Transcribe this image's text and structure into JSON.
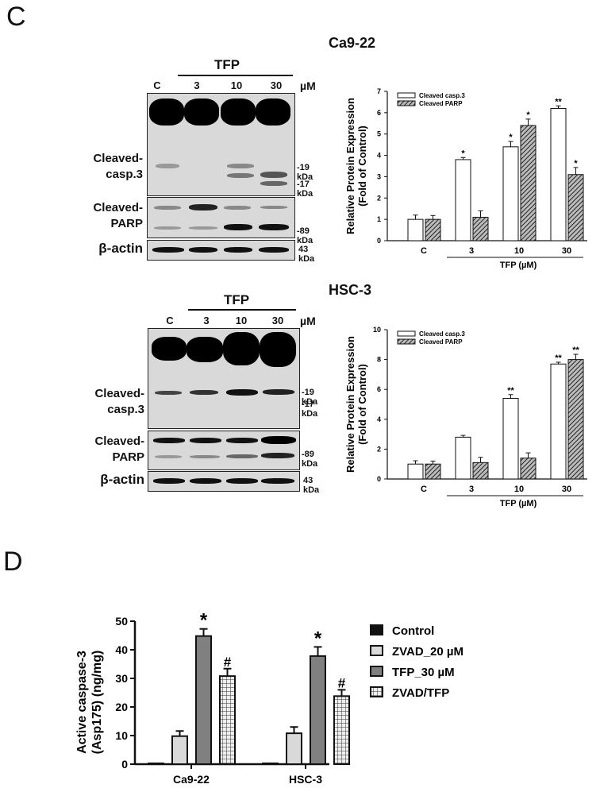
{
  "panel_c": {
    "letter": "C",
    "ca922": {
      "title": "Ca9-22",
      "blot": {
        "treatment": "TFP",
        "lanes": [
          "C",
          "3",
          "10",
          "30"
        ],
        "unit": "µM",
        "rows": [
          {
            "label_line1": "Cleaved-",
            "label_line2": "casp.3",
            "markers": [
              "-19 kDa",
              "-17 kDa"
            ]
          },
          {
            "label_line1": "Cleaved-",
            "label_line2": "PARP",
            "markers": [
              "-89 kDa"
            ]
          },
          {
            "label_line1": "β-actin",
            "label_line2": "",
            "markers": [
              "43 kDa"
            ]
          }
        ]
      }
    },
    "hsc3": {
      "title": "HSC-3",
      "blot": {
        "treatment": "TFP",
        "lanes": [
          "C",
          "3",
          "10",
          "30"
        ],
        "unit": "µM",
        "rows": [
          {
            "label_line1": "Cleaved-",
            "label_line2": "casp.3",
            "markers": [
              "-19 kDa",
              "-17 kDa"
            ]
          },
          {
            "label_line1": "Cleaved-",
            "label_line2": "PARP",
            "markers": [
              "-89 kDa"
            ]
          },
          {
            "label_line1": "β-actin",
            "label_line2": "",
            "markers": [
              "43 kDa"
            ]
          }
        ]
      }
    }
  },
  "panel_d": {
    "letter": "D"
  },
  "chart_data": [
    {
      "type": "bar",
      "title": "Ca9-22",
      "categories": [
        "C",
        "3",
        "10",
        "30"
      ],
      "xlabel": "TFP (µM)",
      "ylabel": "Relative Protein Expression (Fold of Control)",
      "ylim": [
        0,
        7
      ],
      "yticks": [
        0,
        1,
        2,
        3,
        4,
        5,
        6,
        7
      ],
      "legend_position": "top-left",
      "series": [
        {
          "name": "Cleaved casp.3",
          "pattern": "white",
          "values": [
            1.0,
            3.8,
            4.4,
            6.2
          ],
          "errors": [
            0.2,
            0.1,
            0.25,
            0.12
          ],
          "annotations": [
            "",
            "*",
            "*",
            "**"
          ]
        },
        {
          "name": "Cleaved PARP",
          "pattern": "hatched",
          "values": [
            1.0,
            1.1,
            5.4,
            3.1
          ],
          "errors": [
            0.18,
            0.3,
            0.3,
            0.33
          ],
          "annotations": [
            "",
            "",
            "*",
            "*"
          ]
        }
      ]
    },
    {
      "type": "bar",
      "title": "HSC-3",
      "categories": [
        "C",
        "3",
        "10",
        "30"
      ],
      "xlabel": "TFP (µM)",
      "ylabel": "Relative Protein Expression (Fold of Control)",
      "ylim": [
        0,
        10
      ],
      "yticks": [
        0,
        2,
        4,
        6,
        8,
        10
      ],
      "legend_position": "top-left",
      "series": [
        {
          "name": "Cleaved casp.3",
          "pattern": "white",
          "values": [
            1.0,
            2.8,
            5.4,
            7.7
          ],
          "errors": [
            0.22,
            0.12,
            0.25,
            0.12
          ],
          "annotations": [
            "",
            "",
            "**",
            "**"
          ]
        },
        {
          "name": "Cleaved PARP",
          "pattern": "hatched",
          "values": [
            1.0,
            1.1,
            1.4,
            8.0
          ],
          "errors": [
            0.2,
            0.35,
            0.35,
            0.35
          ],
          "annotations": [
            "",
            "",
            "",
            "**"
          ]
        }
      ]
    },
    {
      "type": "bar",
      "title": "",
      "categories": [
        "Ca9-22",
        "HSC-3"
      ],
      "xlabel": "",
      "ylabel": "Active caspase-3 (Asp175) (ng/mg)",
      "ylim": [
        0,
        50
      ],
      "yticks": [
        0,
        10,
        20,
        30,
        40,
        50
      ],
      "legend_position": "right",
      "series": [
        {
          "name": "Control",
          "color": "#111111",
          "values": [
            0.3,
            0.3
          ],
          "errors": [
            0,
            0
          ],
          "annotations": [
            "",
            ""
          ]
        },
        {
          "name": "ZVAD_20 µM",
          "color": "#d9d9d9",
          "values": [
            9.8,
            10.8
          ],
          "errors": [
            1.8,
            2.2
          ],
          "annotations": [
            "",
            ""
          ]
        },
        {
          "name": "TFP_30 µM",
          "color": "#808080",
          "values": [
            44.8,
            37.8
          ],
          "errors": [
            2.5,
            3.2
          ],
          "annotations": [
            "*",
            "*"
          ]
        },
        {
          "name": "ZVAD/TFP",
          "color": "checkered",
          "values": [
            30.8,
            23.8
          ],
          "errors": [
            2.6,
            2.2
          ],
          "annotations": [
            "#",
            "#"
          ]
        }
      ]
    }
  ]
}
